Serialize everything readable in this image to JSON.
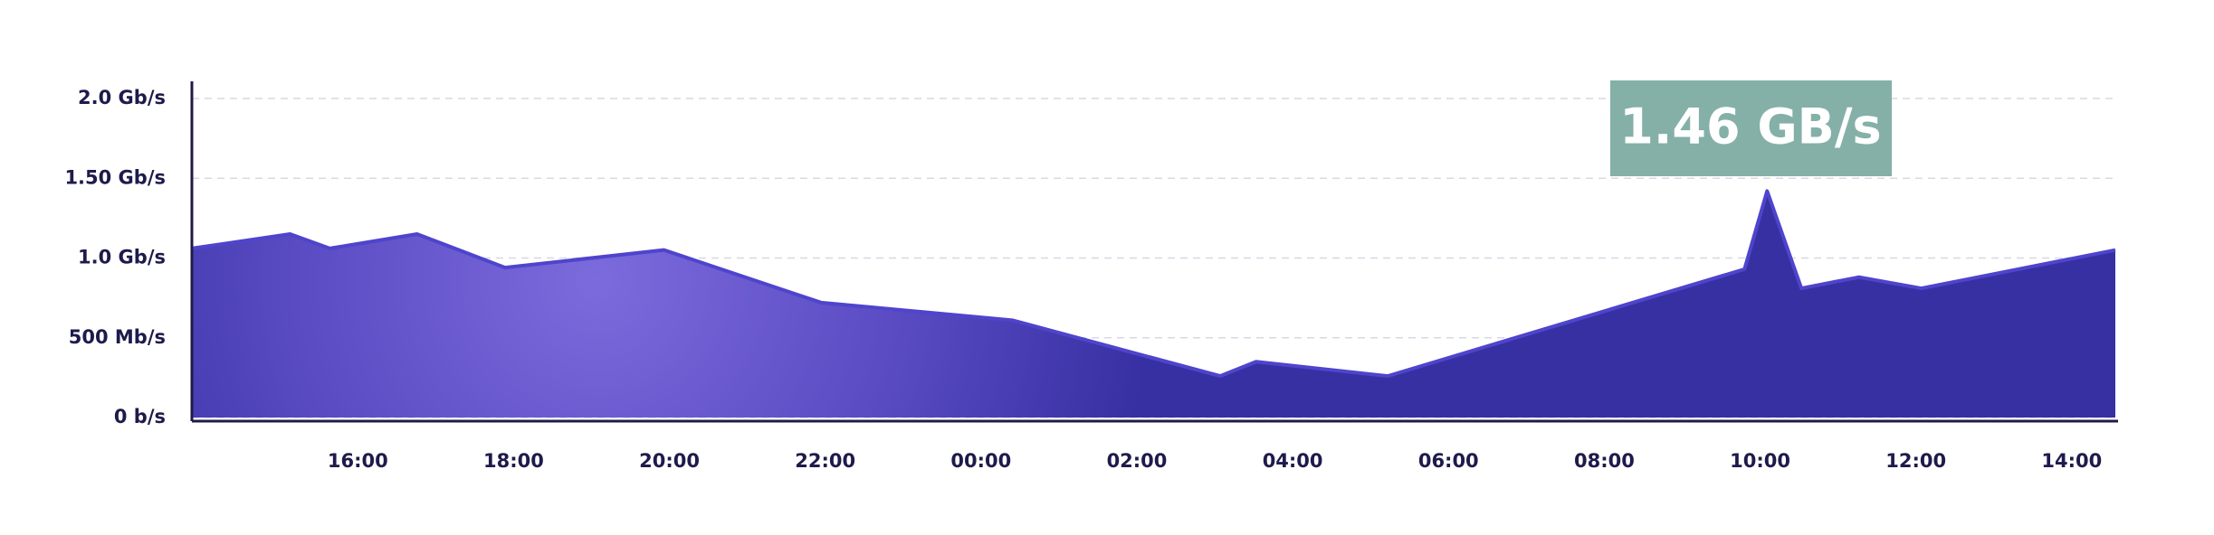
{
  "chart_data": {
    "type": "area",
    "annotation": "1.46 GB/s",
    "x": [
      13.87,
      15.13,
      15.64,
      16.76,
      17.89,
      19.93,
      21.95,
      24.4,
      27.07,
      27.53,
      29.22,
      33.8,
      34.09,
      34.53,
      35.27,
      36.07,
      38.56
    ],
    "values": [
      1.06,
      1.15,
      1.06,
      1.15,
      0.94,
      1.05,
      0.72,
      0.61,
      0.26,
      0.35,
      0.26,
      0.93,
      1.42,
      0.81,
      0.88,
      0.81,
      1.05
    ],
    "color": "#3730a3",
    "xlim": [
      13.87,
      38.56
    ],
    "xticks": [
      {
        "value": 16,
        "label": "16:00"
      },
      {
        "value": 18,
        "label": "18:00"
      },
      {
        "value": 20,
        "label": "20:00"
      },
      {
        "value": 22,
        "label": "22:00"
      },
      {
        "value": 24,
        "label": "00:00"
      },
      {
        "value": 26,
        "label": "02:00"
      },
      {
        "value": 28,
        "label": "04:00"
      },
      {
        "value": 30,
        "label": "06:00"
      },
      {
        "value": 32,
        "label": "08:00"
      },
      {
        "value": 34,
        "label": "10:00"
      },
      {
        "value": 36,
        "label": "12:00"
      },
      {
        "value": 38,
        "label": "14:00"
      }
    ],
    "ylim": [
      0,
      2
    ],
    "yticks": [
      {
        "value": 0,
        "label": "0 b/s"
      },
      {
        "value": 0.5,
        "label": "500 Mb/s"
      },
      {
        "value": 1,
        "label": "1.0 Gb/s"
      },
      {
        "value": 1.5,
        "label": "1.50 Gb/s"
      },
      {
        "value": 2,
        "label": "2.0 Gb/s"
      }
    ],
    "grid": true
  }
}
